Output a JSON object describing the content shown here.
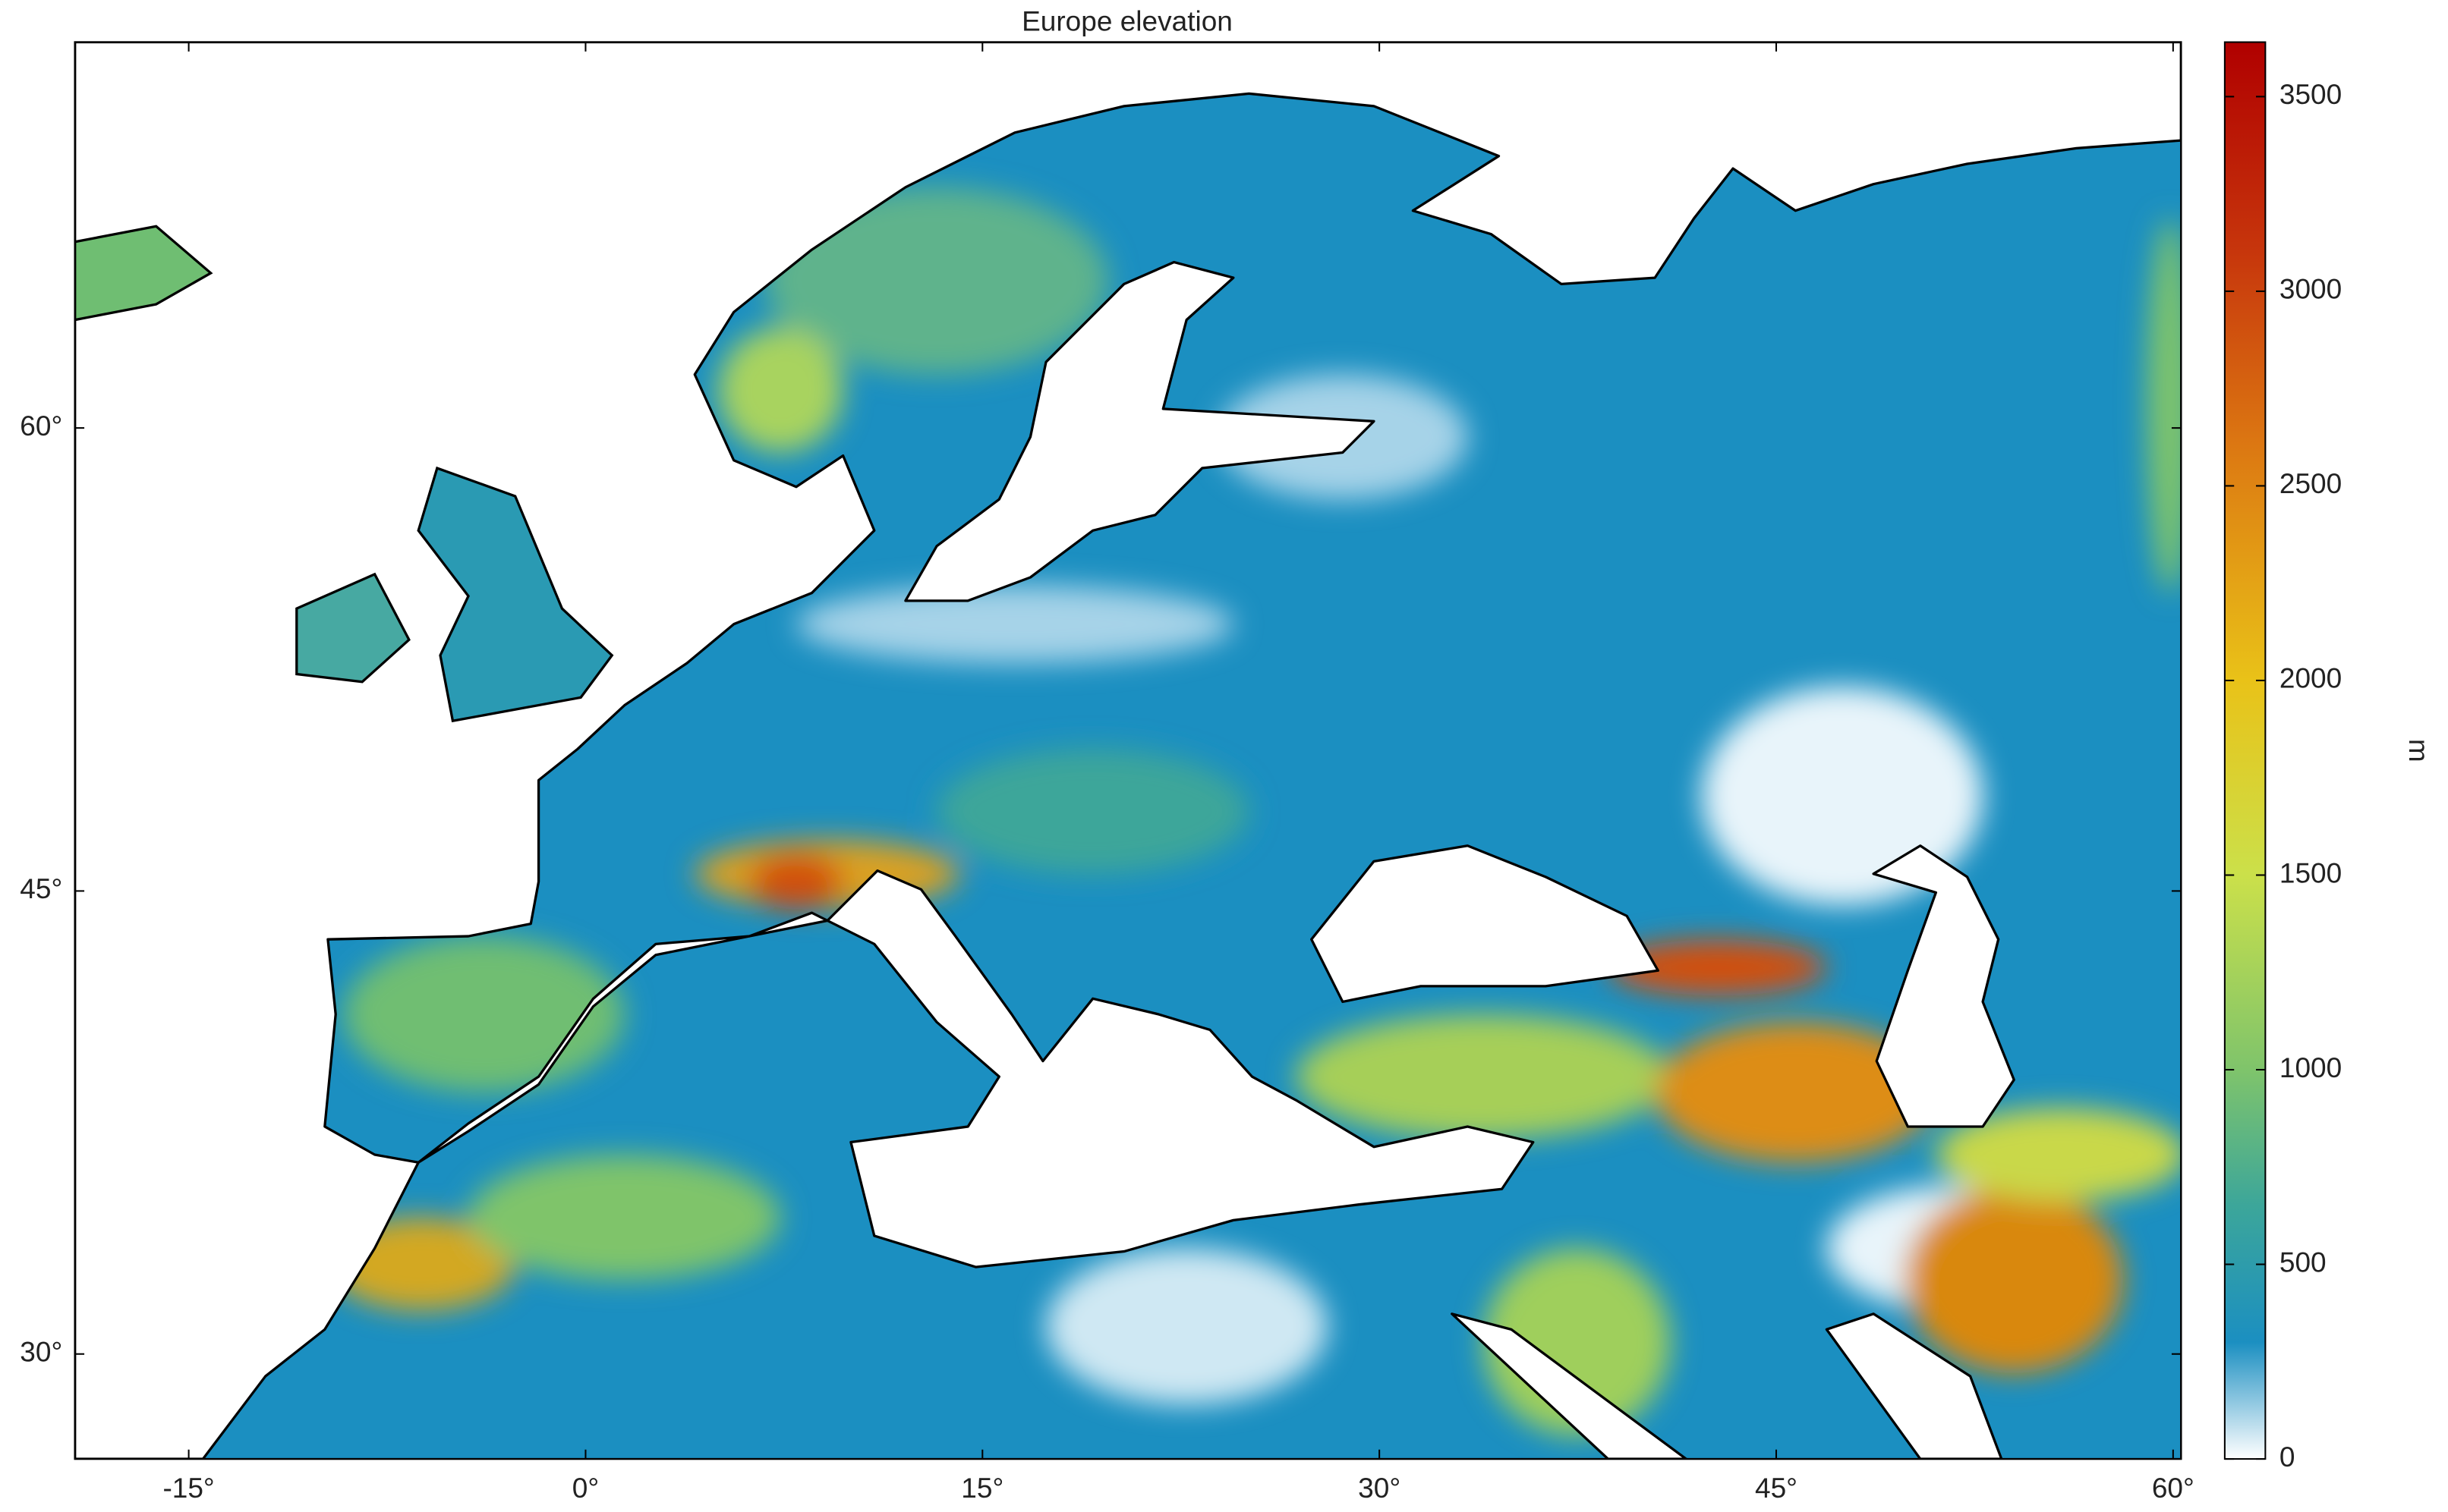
{
  "chart_data": {
    "type": "map",
    "title": "Europe elevation",
    "xlim": [
      -19.3,
      60.3
    ],
    "ylim": [
      26.6,
      72.5
    ],
    "xticks": [
      {
        "value": -15,
        "label": "-15°"
      },
      {
        "value": 0,
        "label": "0°"
      },
      {
        "value": 15,
        "label": "15°"
      },
      {
        "value": 30,
        "label": "30°"
      },
      {
        "value": 45,
        "label": "45°"
      },
      {
        "value": 60,
        "label": "60°"
      }
    ],
    "yticks": [
      {
        "value": 30,
        "label": "30°"
      },
      {
        "value": 45,
        "label": "45°"
      },
      {
        "value": 60,
        "label": "60°"
      }
    ],
    "colorbar": {
      "label": "m",
      "clim": [
        0,
        3640
      ],
      "ticks": [
        0,
        500,
        1000,
        1500,
        2000,
        2500,
        3000,
        3500
      ],
      "stops": [
        {
          "value": 0,
          "color": "#ffffff"
        },
        {
          "value": 150,
          "color": "#8cc6e0"
        },
        {
          "value": 300,
          "color": "#1b8fc1"
        },
        {
          "value": 650,
          "color": "#3ca69a"
        },
        {
          "value": 1000,
          "color": "#7fc46b"
        },
        {
          "value": 1500,
          "color": "#cbe04a"
        },
        {
          "value": 2000,
          "color": "#e9c218"
        },
        {
          "value": 2600,
          "color": "#dc7812"
        },
        {
          "value": 3100,
          "color": "#c7360c"
        },
        {
          "value": 3640,
          "color": "#b00000"
        }
      ]
    }
  }
}
